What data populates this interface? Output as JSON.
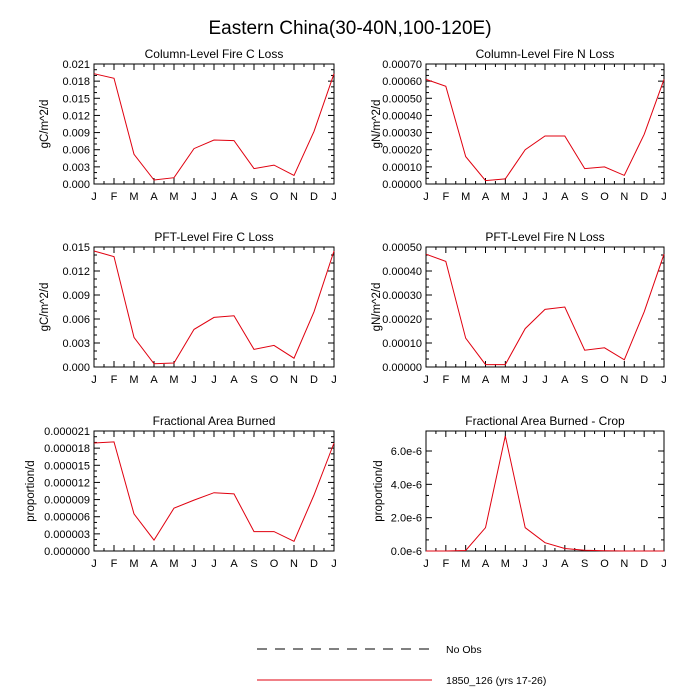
{
  "figure": {
    "title": "Eastern China(30-40N,100-120E)"
  },
  "legend": {
    "entries": [
      {
        "label": "No Obs",
        "color": "#000000",
        "dash": true
      },
      {
        "label": "1850_126 (yrs 17-26)",
        "color": "#e0000f",
        "dash": false
      }
    ]
  },
  "chart_data": [
    {
      "type": "line",
      "title": "Column-Level Fire C Loss",
      "ylabel": "gC/m^2/d",
      "xlabel": "",
      "categories": [
        "J",
        "F",
        "M",
        "A",
        "M",
        "J",
        "J",
        "A",
        "S",
        "O",
        "N",
        "D",
        "J"
      ],
      "ylim": [
        0,
        0.021
      ],
      "yticks": [
        "0.000",
        "0.003",
        "0.006",
        "0.009",
        "0.012",
        "0.015",
        "0.018",
        "0.021"
      ],
      "series": [
        {
          "name": "1850_126 (yrs 17-26)",
          "color": "#e0000f",
          "values": [
            0.0193,
            0.0185,
            0.0052,
            0.0007,
            0.0011,
            0.0062,
            0.0077,
            0.0076,
            0.0027,
            0.0033,
            0.0015,
            0.0092,
            0.0193
          ]
        }
      ]
    },
    {
      "type": "line",
      "title": "Column-Level Fire N Loss",
      "ylabel": "gN/m^2/d",
      "xlabel": "",
      "categories": [
        "J",
        "F",
        "M",
        "A",
        "M",
        "J",
        "J",
        "A",
        "S",
        "O",
        "N",
        "D",
        "J"
      ],
      "ylim": [
        0,
        0.0007
      ],
      "yticks": [
        "0.00000",
        "0.00010",
        "0.00020",
        "0.00030",
        "0.00040",
        "0.00050",
        "0.00060",
        "0.00070"
      ],
      "series": [
        {
          "name": "1850_126 (yrs 17-26)",
          "color": "#e0000f",
          "values": [
            0.00061,
            0.00057,
            0.00016,
            2e-05,
            3e-05,
            0.0002,
            0.00028,
            0.00028,
            9e-05,
            0.0001,
            5e-05,
            0.00029,
            0.00061
          ]
        }
      ]
    },
    {
      "type": "line",
      "title": "PFT-Level Fire C Loss",
      "ylabel": "gC/m^2/d",
      "xlabel": "",
      "categories": [
        "J",
        "F",
        "M",
        "A",
        "M",
        "J",
        "J",
        "A",
        "S",
        "O",
        "N",
        "D",
        "J"
      ],
      "ylim": [
        0,
        0.015
      ],
      "yticks": [
        "0.000",
        "0.003",
        "0.006",
        "0.009",
        "0.012",
        "0.015"
      ],
      "series": [
        {
          "name": "1850_126 (yrs 17-26)",
          "color": "#e0000f",
          "values": [
            0.0145,
            0.0138,
            0.0037,
            0.0004,
            0.0005,
            0.0047,
            0.0062,
            0.0064,
            0.0022,
            0.0027,
            0.0011,
            0.0069,
            0.0145
          ]
        }
      ]
    },
    {
      "type": "line",
      "title": "PFT-Level Fire N Loss",
      "ylabel": "gN/m^2/d",
      "xlabel": "",
      "categories": [
        "J",
        "F",
        "M",
        "A",
        "M",
        "J",
        "J",
        "A",
        "S",
        "O",
        "N",
        "D",
        "J"
      ],
      "ylim": [
        0,
        0.0005
      ],
      "yticks": [
        "0.00000",
        "0.00010",
        "0.00020",
        "0.00030",
        "0.00040",
        "0.00050"
      ],
      "series": [
        {
          "name": "1850_126 (yrs 17-26)",
          "color": "#e0000f",
          "values": [
            0.00047,
            0.00044,
            0.00012,
            1e-05,
            1e-05,
            0.00016,
            0.00024,
            0.00025,
            7e-05,
            8e-05,
            3e-05,
            0.00023,
            0.00047
          ]
        }
      ]
    },
    {
      "type": "line",
      "title": "Fractional Area Burned",
      "ylabel": "proportion/d",
      "xlabel": "",
      "categories": [
        "J",
        "F",
        "M",
        "A",
        "M",
        "J",
        "J",
        "A",
        "S",
        "O",
        "N",
        "D",
        "J"
      ],
      "ylim": [
        0,
        2.1e-05
      ],
      "yticks": [
        "0.000000",
        "0.000003",
        "0.000006",
        "0.000009",
        "0.000012",
        "0.000015",
        "0.000018",
        "0.000021"
      ],
      "series": [
        {
          "name": "1850_126 (yrs 17-26)",
          "color": "#e0000f",
          "values": [
            1.89e-05,
            1.91e-05,
            6.5e-06,
            1.9e-06,
            7.5e-06,
            8.9e-06,
            1.02e-05,
            1e-05,
            3.4e-06,
            3.4e-06,
            1.7e-06,
            9.8e-06,
            1.89e-05
          ]
        }
      ]
    },
    {
      "type": "line",
      "title": "Fractional Area Burned - Crop",
      "ylabel": "proportion/d",
      "xlabel": "",
      "categories": [
        "J",
        "F",
        "M",
        "A",
        "M",
        "J",
        "J",
        "A",
        "S",
        "O",
        "N",
        "D",
        "J"
      ],
      "ylim": [
        0,
        7.2e-06
      ],
      "yticks": [
        "0.0e-6",
        "2.0e-6",
        "4.0e-6",
        "6.0e-6"
      ],
      "ytick_values": [
        0,
        2e-06,
        4e-06,
        6e-06
      ],
      "series": [
        {
          "name": "1850_126 (yrs 17-26)",
          "color": "#e0000f",
          "values": [
            0,
            0,
            3e-08,
            1.4e-06,
            6.9e-06,
            1.4e-06,
            5e-07,
            1.5e-07,
            5e-08,
            2e-08,
            0,
            0,
            0
          ]
        }
      ]
    }
  ]
}
